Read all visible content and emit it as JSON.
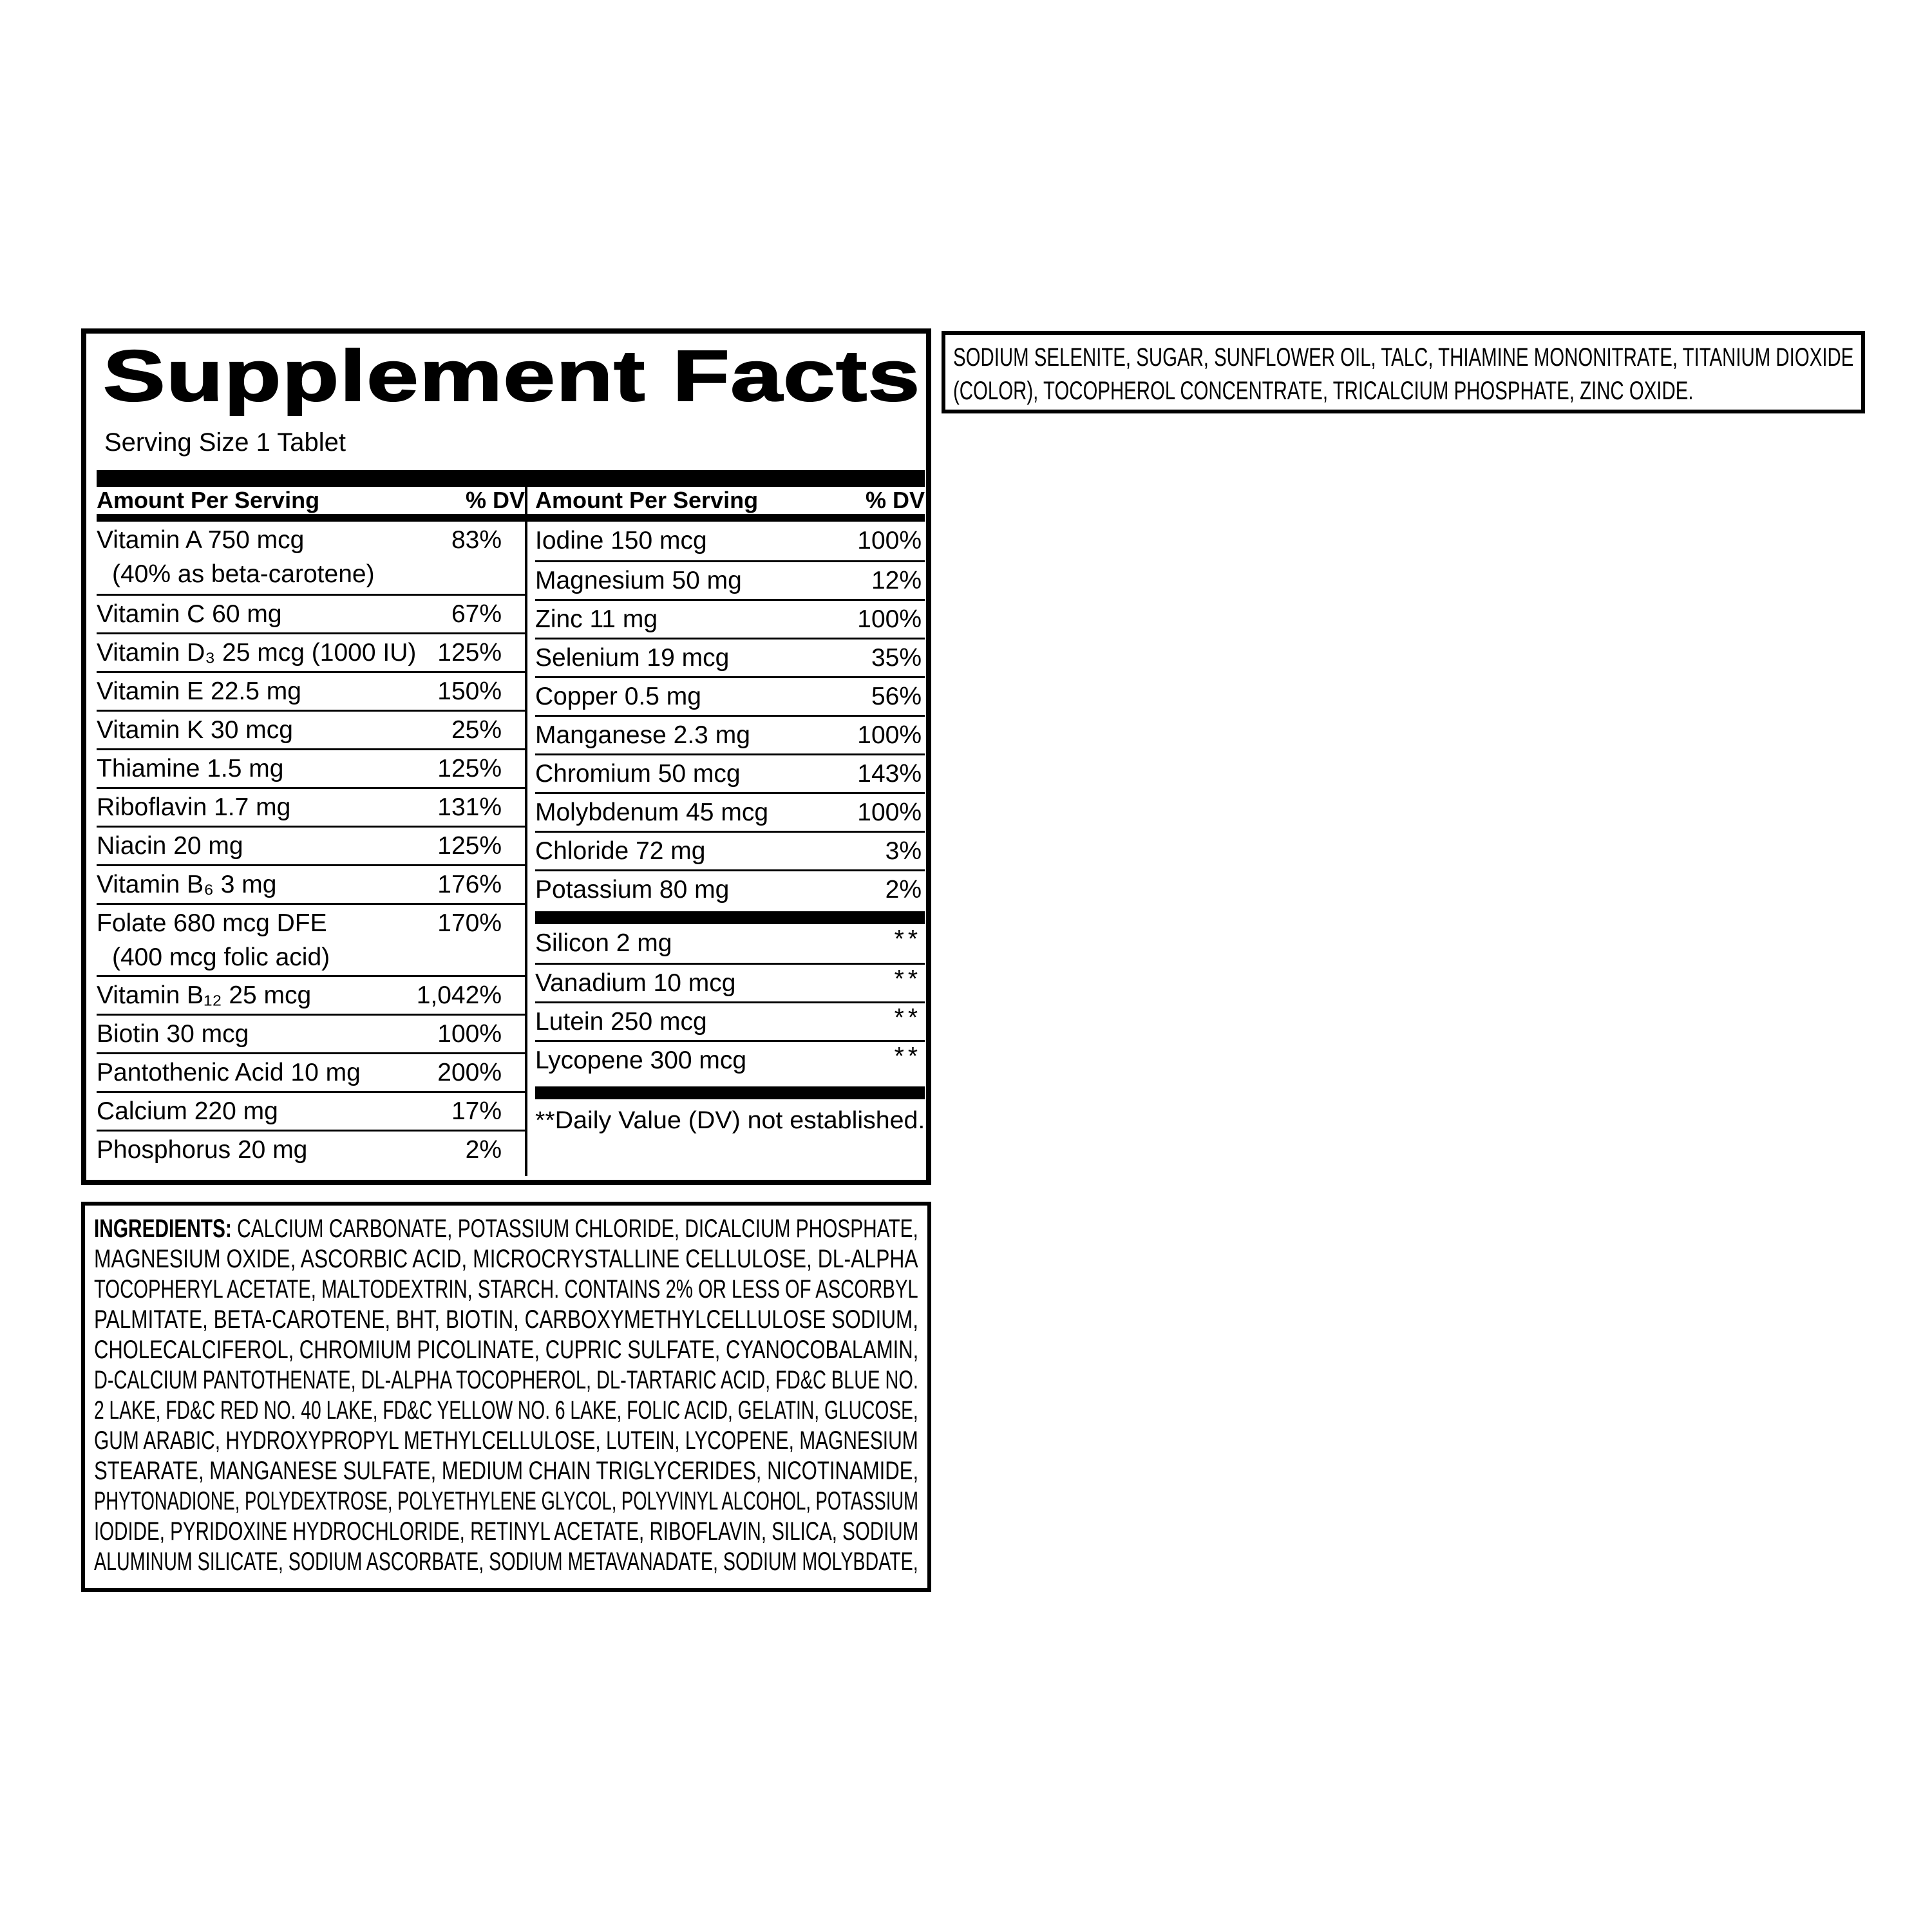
{
  "colors": {
    "ink": "#000000",
    "paper": "#ffffff"
  },
  "facts": {
    "title": "Supplement Facts",
    "serving": "Serving Size 1 Tablet",
    "header_amount": "Amount Per Serving",
    "header_dv": "% DV",
    "left_rows": [
      {
        "name": "Vitamin A 750 mcg",
        "sub": "(40% as beta-carotene)",
        "dv": "83%"
      },
      {
        "name": "Vitamin C 60 mg",
        "dv": "67%"
      },
      {
        "name": "Vitamin D₃ 25 mcg (1000 IU)",
        "dv": "125%"
      },
      {
        "name": "Vitamin E 22.5 mg",
        "dv": "150%"
      },
      {
        "name": "Vitamin K 30 mcg",
        "dv": "25%"
      },
      {
        "name": "Thiamine 1.5 mg",
        "dv": "125%"
      },
      {
        "name": "Riboflavin 1.7 mg",
        "dv": "131%"
      },
      {
        "name": "Niacin 20 mg",
        "dv": "125%"
      },
      {
        "name": "Vitamin B₆ 3 mg",
        "dv": "176%"
      },
      {
        "name": "Folate 680 mcg DFE",
        "sub": "(400 mcg folic acid)",
        "dv": "170%"
      },
      {
        "name": "Vitamin B₁₂ 25 mcg",
        "dv": "1,042%"
      },
      {
        "name": "Biotin 30 mcg",
        "dv": "100%"
      },
      {
        "name": "Pantothenic Acid 10 mg",
        "dv": "200%"
      },
      {
        "name": "Calcium 220 mg",
        "dv": "17%"
      },
      {
        "name": "Phosphorus 20 mg",
        "dv": "2%"
      }
    ],
    "right_rows": [
      {
        "name": "Iodine 150 mcg",
        "dv": "100%"
      },
      {
        "name": "Magnesium 50 mg",
        "dv": "12%"
      },
      {
        "name": "Zinc 11 mg",
        "dv": "100%"
      },
      {
        "name": "Selenium 19 mcg",
        "dv": "35%"
      },
      {
        "name": "Copper 0.5 mg",
        "dv": "56%"
      },
      {
        "name": "Manganese 2.3 mg",
        "dv": "100%"
      },
      {
        "name": "Chromium 50 mcg",
        "dv": "143%"
      },
      {
        "name": "Molybdenum 45 mcg",
        "dv": "100%"
      },
      {
        "name": "Chloride 72 mg",
        "dv": "3%"
      },
      {
        "name": "Potassium 80 mg",
        "dv": "2%"
      }
    ],
    "right_rows_no_dv": [
      {
        "name": "Silicon 2 mg",
        "dv": "**"
      },
      {
        "name": "Vanadium 10 mcg",
        "dv": "**"
      },
      {
        "name": "Lutein 250 mcg",
        "dv": "**"
      },
      {
        "name": "Lycopene 300 mcg",
        "dv": "**"
      }
    ],
    "footnote": "**Daily Value (DV) not established."
  },
  "ingredients": {
    "label": "INGREDIENTS:",
    "first_line": "CALCIUM CARBONATE, POTASSIUM CHLORIDE, DICALCIUM PHOSPHATE,",
    "lines": [
      "MAGNESIUM OXIDE, ASCORBIC ACID, MICROCRYSTALLINE CELLULOSE, DL-ALPHA",
      "TOCOPHERYL ACETATE, MALTODEXTRIN, STARCH. CONTAINS 2% OR LESS OF ASCORBYL",
      "PALMITATE, BETA-CAROTENE, BHT, BIOTIN, CARBOXYMETHYLCELLULOSE SODIUM,",
      "CHOLECALCIFEROL, CHROMIUM PICOLINATE, CUPRIC SULFATE, CYANOCOBALAMIN,",
      "D-CALCIUM PANTOTHENATE, DL-ALPHA TOCOPHEROL, DL-TARTARIC ACID, FD&C BLUE NO.",
      "2 LAKE, FD&C RED NO. 40 LAKE, FD&C YELLOW NO. 6 LAKE, FOLIC ACID, GELATIN, GLUCOSE,",
      "GUM ARABIC, HYDROXYPROPYL METHYLCELLULOSE, LUTEIN, LYCOPENE, MAGNESIUM",
      "STEARATE, MANGANESE SULFATE, MEDIUM CHAIN TRIGLYCERIDES, NICOTINAMIDE,",
      "PHYTONADIONE, POLYDEXTROSE, POLYETHYLENE GLYCOL, POLYVINYL ALCOHOL, POTASSIUM",
      "IODIDE, PYRIDOXINE HYDROCHLORIDE, RETINYL ACETATE, RIBOFLAVIN, SILICA, SODIUM",
      "ALUMINUM SILICATE, SODIUM ASCORBATE, SODIUM METAVANADATE, SODIUM MOLYBDATE,"
    ]
  },
  "side_panel": {
    "lines": [
      "SODIUM SELENITE, SUGAR, SUNFLOWER OIL, TALC, THIAMINE MONONITRATE, TITANIUM DIOXIDE",
      "(COLOR), TOCOPHEROL CONCENTRATE, TRICALCIUM PHOSPHATE, ZINC OXIDE."
    ]
  }
}
